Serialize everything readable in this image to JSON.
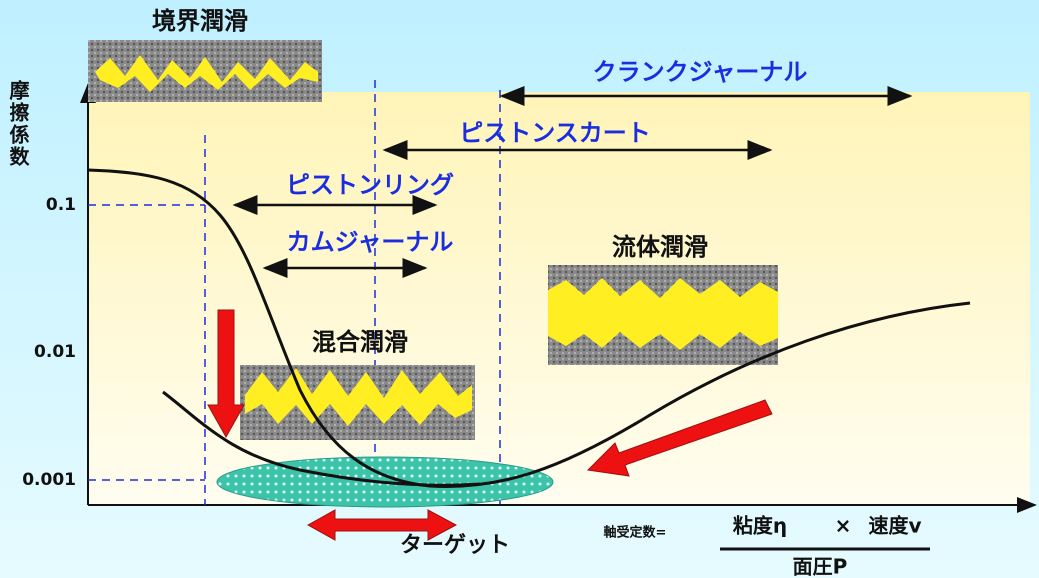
{
  "title": "境界潤滑",
  "y_axis": {
    "label": "摩擦係数",
    "ticks": [
      "0.1",
      "0.01",
      "0.001"
    ]
  },
  "ranges": [
    "クランクジャーナル",
    "ピストンスカート",
    "ピストンリング",
    "カムジャーナル"
  ],
  "regions": {
    "mixed": "混合潤滑",
    "fluid": "流体潤滑"
  },
  "target": "ターゲット",
  "formula": {
    "lhs": "軸受定数=",
    "viscosity": "粘度η",
    "times": "×",
    "speed": "速度v",
    "pressure": "面圧P"
  }
}
